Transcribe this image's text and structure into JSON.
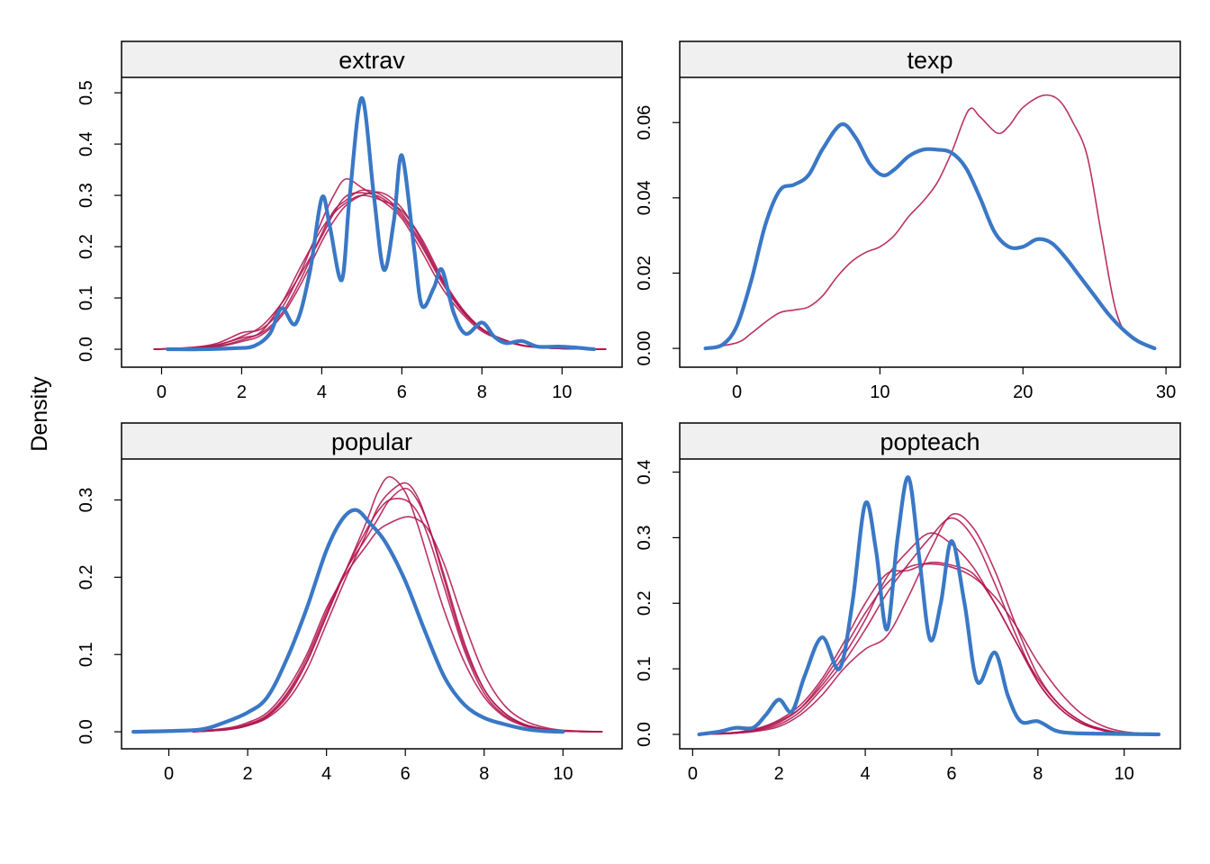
{
  "ylabel": "Density",
  "colors": {
    "observed": "#3a78c6",
    "imputed": "#b0164f",
    "strip_bg": "#f0f0f0"
  },
  "chart_data": [
    {
      "type": "line",
      "title": "extrav",
      "xlim": [
        -1,
        11.5
      ],
      "ylim": [
        -0.035,
        0.53
      ],
      "xticks": [
        0,
        2,
        4,
        6,
        8,
        10
      ],
      "yticks": [
        0.0,
        0.1,
        0.2,
        0.3,
        0.4,
        0.5
      ],
      "ytick_labels": [
        "0.0",
        "0.1",
        "0.2",
        "0.3",
        "0.4",
        "0.5"
      ],
      "observed": {
        "x": [
          0.15,
          1,
          1.8,
          2.3,
          2.7,
          3.0,
          3.35,
          3.7,
          4.0,
          4.2,
          4.5,
          4.7,
          5.0,
          5.3,
          5.55,
          5.8,
          6.0,
          6.3,
          6.5,
          6.8,
          7.0,
          7.3,
          7.6,
          8.0,
          8.3,
          8.6,
          9.0,
          9.4,
          10,
          10.8
        ],
        "y": [
          0,
          0,
          0.002,
          0.006,
          0.03,
          0.08,
          0.05,
          0.15,
          0.295,
          0.24,
          0.135,
          0.3,
          0.49,
          0.3,
          0.155,
          0.25,
          0.378,
          0.2,
          0.085,
          0.12,
          0.155,
          0.07,
          0.03,
          0.052,
          0.025,
          0.012,
          0.016,
          0.005,
          0.005,
          0
        ]
      },
      "imputed": [
        {
          "x": [
            -0.2,
            0.8,
            1.4,
            2,
            2.5,
            3,
            3.5,
            4,
            4.3,
            4.6,
            5,
            5.5,
            6,
            6.5,
            7,
            7.5,
            8,
            8.5,
            9,
            9.5,
            10.2,
            11.1
          ],
          "y": [
            0,
            0.003,
            0.008,
            0.025,
            0.045,
            0.09,
            0.15,
            0.22,
            0.265,
            0.298,
            0.305,
            0.295,
            0.26,
            0.2,
            0.13,
            0.075,
            0.04,
            0.02,
            0.008,
            0.003,
            0.001,
            0
          ]
        },
        {
          "x": [
            -0.2,
            0.8,
            1.4,
            2,
            2.5,
            3,
            3.5,
            4,
            4.3,
            4.6,
            5,
            5.5,
            6,
            6.5,
            7,
            7.5,
            8,
            8.5,
            9,
            9.5,
            10.2,
            11.1
          ],
          "y": [
            0,
            0.004,
            0.012,
            0.032,
            0.04,
            0.08,
            0.155,
            0.25,
            0.3,
            0.332,
            0.315,
            0.29,
            0.255,
            0.19,
            0.12,
            0.07,
            0.035,
            0.018,
            0.008,
            0.003,
            0.001,
            0
          ]
        },
        {
          "x": [
            -0.2,
            0.8,
            1.4,
            2,
            2.5,
            3,
            3.5,
            4,
            4.3,
            4.6,
            5,
            5.5,
            6,
            6.5,
            7,
            7.5,
            8,
            8.5,
            9,
            9.5,
            10.2,
            11.1
          ],
          "y": [
            0,
            0.002,
            0.006,
            0.018,
            0.035,
            0.09,
            0.165,
            0.235,
            0.265,
            0.285,
            0.3,
            0.29,
            0.27,
            0.215,
            0.14,
            0.08,
            0.04,
            0.02,
            0.008,
            0.003,
            0.001,
            0
          ]
        },
        {
          "x": [
            -0.2,
            0.8,
            1.4,
            2,
            2.5,
            3,
            3.5,
            4,
            4.3,
            4.6,
            5,
            5.5,
            6,
            6.5,
            7,
            7.5,
            8,
            8.5,
            9,
            9.5,
            10.2,
            11.1
          ],
          "y": [
            0,
            0.003,
            0.009,
            0.022,
            0.032,
            0.07,
            0.14,
            0.225,
            0.27,
            0.29,
            0.31,
            0.3,
            0.265,
            0.205,
            0.135,
            0.078,
            0.04,
            0.019,
            0.008,
            0.003,
            0.001,
            0
          ]
        },
        {
          "x": [
            -0.2,
            0.8,
            1.4,
            2,
            2.5,
            3,
            3.5,
            4,
            4.3,
            4.6,
            5,
            5.5,
            6,
            6.5,
            7,
            7.5,
            8,
            8.5,
            9,
            9.5,
            10.2,
            11.1
          ],
          "y": [
            0,
            0.002,
            0.005,
            0.015,
            0.028,
            0.065,
            0.13,
            0.21,
            0.25,
            0.28,
            0.3,
            0.305,
            0.275,
            0.21,
            0.135,
            0.075,
            0.038,
            0.018,
            0.007,
            0.003,
            0.001,
            0
          ]
        }
      ]
    },
    {
      "type": "line",
      "title": "texp",
      "xlim": [
        -4,
        31
      ],
      "ylim": [
        -0.005,
        0.072
      ],
      "xticks": [
        0,
        10,
        20,
        30
      ],
      "yticks": [
        0.0,
        0.02,
        0.04,
        0.06
      ],
      "ytick_labels": [
        "0.00",
        "0.02",
        "0.04",
        "0.06"
      ],
      "observed": {
        "x": [
          -2.2,
          -1,
          0,
          1,
          2,
          3,
          4,
          5,
          6,
          7.3,
          8.3,
          9.3,
          10.2,
          11,
          12,
          13,
          14,
          15,
          16,
          17,
          18,
          19,
          20,
          21,
          22,
          23,
          24,
          25,
          26,
          27,
          28,
          29.2
        ],
        "y": [
          0,
          0.001,
          0.006,
          0.018,
          0.033,
          0.042,
          0.0435,
          0.046,
          0.053,
          0.0595,
          0.056,
          0.049,
          0.046,
          0.0475,
          0.051,
          0.0528,
          0.0528,
          0.052,
          0.048,
          0.04,
          0.031,
          0.027,
          0.027,
          0.029,
          0.028,
          0.024,
          0.019,
          0.014,
          0.009,
          0.005,
          0.002,
          0
        ]
      },
      "imputed": [
        {
          "x": [
            -2.2,
            0,
            1,
            2,
            3,
            4,
            5,
            6,
            7,
            8,
            9,
            10,
            11,
            12,
            13,
            14,
            15,
            16.2,
            17,
            18.2,
            19,
            20,
            21.4,
            22.5,
            23.5,
            24.5,
            25.5,
            26.5,
            27.5,
            29.2
          ],
          "y": [
            0,
            0.0015,
            0.004,
            0.007,
            0.0095,
            0.0102,
            0.011,
            0.014,
            0.019,
            0.023,
            0.0255,
            0.027,
            0.03,
            0.035,
            0.039,
            0.044,
            0.052,
            0.0633,
            0.0615,
            0.0572,
            0.059,
            0.064,
            0.0672,
            0.066,
            0.06,
            0.051,
            0.03,
            0.01,
            0.003,
            0
          ]
        }
      ]
    },
    {
      "type": "line",
      "title": "popular",
      "xlim": [
        -1.2,
        11.5
      ],
      "ylim": [
        -0.022,
        0.353
      ],
      "xticks": [
        0,
        2,
        4,
        6,
        8,
        10
      ],
      "yticks": [
        0.0,
        0.1,
        0.2,
        0.3
      ],
      "ytick_labels": [
        "0.0",
        "0.1",
        "0.2",
        "0.3"
      ],
      "observed": {
        "x": [
          -0.9,
          0,
          0.8,
          1.3,
          2,
          2.5,
          3,
          3.5,
          4,
          4.4,
          4.75,
          5.1,
          5.5,
          6,
          6.5,
          7,
          7.5,
          8,
          8.5,
          9,
          9.5,
          10
        ],
        "y": [
          0,
          0.001,
          0.003,
          0.01,
          0.025,
          0.045,
          0.095,
          0.16,
          0.235,
          0.275,
          0.287,
          0.27,
          0.245,
          0.195,
          0.13,
          0.07,
          0.035,
          0.018,
          0.01,
          0.004,
          0.001,
          0
        ]
      },
      "imputed": [
        {
          "x": [
            0.6,
            1.5,
            2,
            2.5,
            3,
            3.5,
            4,
            4.5,
            5,
            5.3,
            5.6,
            6,
            6.3,
            6.6,
            7,
            7.5,
            8,
            8.5,
            9,
            9.5,
            10,
            11
          ],
          "y": [
            0,
            0.003,
            0.008,
            0.02,
            0.045,
            0.09,
            0.15,
            0.21,
            0.27,
            0.31,
            0.33,
            0.31,
            0.27,
            0.22,
            0.155,
            0.09,
            0.045,
            0.02,
            0.008,
            0.003,
            0.001,
            0
          ]
        },
        {
          "x": [
            0.6,
            1.5,
            2,
            2.5,
            3,
            3.5,
            4,
            4.5,
            5,
            5.3,
            5.6,
            6,
            6.3,
            6.6,
            7,
            7.5,
            8,
            8.5,
            9,
            9.5,
            10,
            11
          ],
          "y": [
            0,
            0.003,
            0.008,
            0.018,
            0.04,
            0.08,
            0.14,
            0.2,
            0.255,
            0.29,
            0.31,
            0.322,
            0.305,
            0.265,
            0.195,
            0.11,
            0.055,
            0.025,
            0.01,
            0.004,
            0.001,
            0
          ]
        },
        {
          "x": [
            0.6,
            1.5,
            2,
            2.5,
            3,
            3.5,
            4,
            4.5,
            5,
            5.3,
            5.6,
            6,
            6.3,
            6.6,
            7,
            7.5,
            8,
            8.5,
            9,
            9.5,
            10,
            11
          ],
          "y": [
            0,
            0.004,
            0.01,
            0.022,
            0.05,
            0.095,
            0.155,
            0.21,
            0.25,
            0.275,
            0.3,
            0.315,
            0.3,
            0.265,
            0.2,
            0.115,
            0.055,
            0.025,
            0.01,
            0.004,
            0.001,
            0
          ]
        },
        {
          "x": [
            0.6,
            1.5,
            2,
            2.5,
            3,
            3.5,
            4,
            4.5,
            5,
            5.3,
            5.6,
            6,
            6.3,
            6.6,
            7,
            7.5,
            8,
            8.5,
            9,
            9.5,
            10,
            11
          ],
          "y": [
            0,
            0.005,
            0.012,
            0.025,
            0.055,
            0.1,
            0.16,
            0.205,
            0.24,
            0.26,
            0.27,
            0.278,
            0.275,
            0.26,
            0.215,
            0.14,
            0.075,
            0.035,
            0.015,
            0.006,
            0.002,
            0
          ]
        },
        {
          "x": [
            0.6,
            1.5,
            2,
            2.5,
            3,
            3.5,
            4,
            4.5,
            5,
            5.3,
            5.6,
            6,
            6.3,
            6.6,
            7,
            7.5,
            8,
            8.5,
            9,
            9.5,
            10,
            11
          ],
          "y": [
            0,
            0.003,
            0.009,
            0.02,
            0.048,
            0.09,
            0.15,
            0.21,
            0.26,
            0.285,
            0.3,
            0.3,
            0.285,
            0.25,
            0.185,
            0.105,
            0.05,
            0.022,
            0.009,
            0.003,
            0.001,
            0
          ]
        }
      ]
    },
    {
      "type": "line",
      "title": "popteach",
      "xlim": [
        -0.3,
        11.3
      ],
      "ylim": [
        -0.022,
        0.42
      ],
      "xticks": [
        0,
        2,
        4,
        6,
        8,
        10
      ],
      "yticks": [
        0.0,
        0.1,
        0.2,
        0.3,
        0.4
      ],
      "ytick_labels": [
        "0.0",
        "0.1",
        "0.2",
        "0.3",
        "0.4"
      ],
      "observed": {
        "x": [
          0.15,
          0.6,
          1.0,
          1.4,
          1.7,
          2.0,
          2.3,
          2.6,
          3.0,
          3.4,
          3.7,
          4.0,
          4.25,
          4.5,
          4.75,
          5.0,
          5.25,
          5.5,
          5.75,
          6.0,
          6.3,
          6.6,
          7.0,
          7.3,
          7.6,
          8.0,
          8.4,
          8.8,
          9.5,
          10.8
        ],
        "y": [
          0,
          0.004,
          0.01,
          0.01,
          0.03,
          0.053,
          0.035,
          0.09,
          0.148,
          0.1,
          0.2,
          0.352,
          0.28,
          0.16,
          0.3,
          0.392,
          0.27,
          0.145,
          0.2,
          0.295,
          0.2,
          0.08,
          0.125,
          0.06,
          0.02,
          0.02,
          0.006,
          0.002,
          0.001,
          0
        ]
      },
      "imputed": [
        {
          "x": [
            0.2,
            1,
            1.5,
            2,
            2.5,
            3,
            3.5,
            4,
            4.5,
            5,
            5.5,
            6,
            6.5,
            7,
            7.5,
            8,
            8.5,
            9,
            9.5,
            10,
            10.8
          ],
          "y": [
            0,
            0.002,
            0.006,
            0.015,
            0.035,
            0.07,
            0.11,
            0.16,
            0.215,
            0.26,
            0.3,
            0.33,
            0.3,
            0.23,
            0.15,
            0.08,
            0.04,
            0.017,
            0.006,
            0.002,
            0
          ]
        },
        {
          "x": [
            0.2,
            1,
            1.5,
            2,
            2.5,
            3,
            3.5,
            4,
            4.5,
            5,
            5.5,
            6,
            6.5,
            7,
            7.5,
            8,
            8.5,
            9,
            9.5,
            10,
            10.8
          ],
          "y": [
            0,
            0.003,
            0.008,
            0.02,
            0.04,
            0.075,
            0.12,
            0.175,
            0.24,
            0.28,
            0.307,
            0.29,
            0.255,
            0.2,
            0.14,
            0.08,
            0.04,
            0.017,
            0.006,
            0.002,
            0
          ]
        },
        {
          "x": [
            0.2,
            1,
            1.5,
            2,
            2.5,
            3,
            3.5,
            4,
            4.5,
            5,
            5.5,
            6,
            6.5,
            7,
            7.5,
            8,
            8.5,
            9,
            9.5,
            10,
            10.8
          ],
          "y": [
            0,
            0.003,
            0.009,
            0.022,
            0.045,
            0.085,
            0.14,
            0.2,
            0.245,
            0.25,
            0.262,
            0.258,
            0.245,
            0.2,
            0.14,
            0.085,
            0.045,
            0.02,
            0.008,
            0.002,
            0
          ]
        },
        {
          "x": [
            0.2,
            1,
            1.5,
            2,
            2.5,
            3,
            3.5,
            4,
            4.5,
            5,
            5.5,
            6,
            6.5,
            7,
            7.5,
            8,
            8.5,
            9,
            9.5,
            10,
            10.8
          ],
          "y": [
            0,
            0.002,
            0.005,
            0.012,
            0.03,
            0.06,
            0.1,
            0.13,
            0.15,
            0.21,
            0.28,
            0.335,
            0.315,
            0.25,
            0.165,
            0.09,
            0.045,
            0.02,
            0.007,
            0.002,
            0
          ]
        },
        {
          "x": [
            0.2,
            1,
            1.5,
            2,
            2.5,
            3,
            3.5,
            4,
            4.5,
            5,
            5.5,
            6,
            6.5,
            7,
            7.5,
            8,
            8.5,
            9,
            9.5,
            10,
            10.8
          ],
          "y": [
            0,
            0.002,
            0.007,
            0.018,
            0.04,
            0.08,
            0.13,
            0.185,
            0.23,
            0.255,
            0.26,
            0.255,
            0.24,
            0.21,
            0.165,
            0.11,
            0.065,
            0.032,
            0.013,
            0.004,
            0
          ]
        }
      ]
    }
  ]
}
